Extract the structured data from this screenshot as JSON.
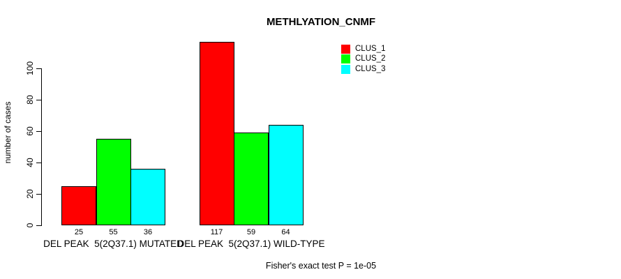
{
  "title": "METHLYATION_CNMF",
  "ylabel": "number of cases",
  "footer": "Fisher's exact test P = 1e-05",
  "legend": {
    "items": [
      {
        "label": "CLUS_1",
        "color": "#FF0000"
      },
      {
        "label": "CLUS_2",
        "color": "#00FF00"
      },
      {
        "label": "CLUS_3",
        "color": "#00FFFF"
      }
    ]
  },
  "chart_data": {
    "type": "bar",
    "grouped": true,
    "title": "METHLYATION_CNMF",
    "categories": [
      "DEL PEAK  5(2Q37.1) MUTATED",
      "DEL PEAK  5(2Q37.1) WILD-TYPE"
    ],
    "series": [
      {
        "name": "CLUS_1",
        "color": "#FF0000",
        "values": [
          25,
          117
        ]
      },
      {
        "name": "CLUS_2",
        "color": "#00FF00",
        "values": [
          55,
          59
        ]
      },
      {
        "name": "CLUS_3",
        "color": "#00FFFF",
        "values": [
          36,
          64
        ]
      }
    ],
    "ylabel": "number of cases",
    "yticks": [
      0,
      20,
      40,
      60,
      80,
      100
    ],
    "ylim": [
      0,
      118
    ],
    "bar_value_labels": true,
    "grid": false,
    "legend_position": "top-right",
    "annotation": "Fisher's exact test P = 1e-05"
  }
}
